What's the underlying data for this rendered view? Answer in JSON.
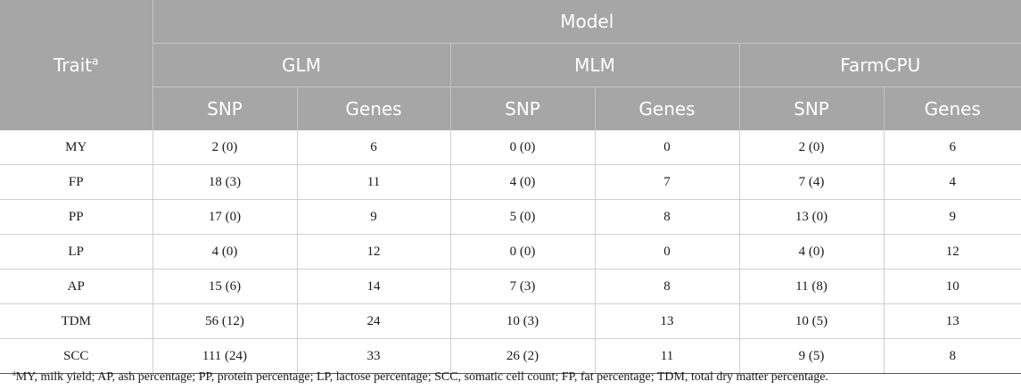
{
  "header": {
    "trait_label": "Trait",
    "trait_sup": "a",
    "model_label": "Model",
    "models": [
      "GLM",
      "MLM",
      "FarmCPU"
    ],
    "subcols": [
      "SNP",
      "Genes",
      "SNP",
      "Genes",
      "SNP",
      "Genes"
    ]
  },
  "rows": [
    {
      "trait": "MY",
      "cells": [
        "2 (0)",
        "6",
        "0 (0)",
        "0",
        "2 (0)",
        "6"
      ]
    },
    {
      "trait": "FP",
      "cells": [
        "18 (3)",
        "11",
        "4 (0)",
        "7",
        "7 (4)",
        "4"
      ]
    },
    {
      "trait": "PP",
      "cells": [
        "17 (0)",
        "9",
        "5 (0)",
        "8",
        "13 (0)",
        "9"
      ]
    },
    {
      "trait": "LP",
      "cells": [
        "4 (0)",
        "12",
        "0 (0)",
        "0",
        "4 (0)",
        "12"
      ]
    },
    {
      "trait": "AP",
      "cells": [
        "15 (6)",
        "14",
        "7 (3)",
        "8",
        "11 (8)",
        "10"
      ]
    },
    {
      "trait": "TDM",
      "cells": [
        "56 (12)",
        "24",
        "10 (3)",
        "13",
        "10 (5)",
        "13"
      ]
    },
    {
      "trait": "SCC",
      "cells": [
        "111 (24)",
        "33",
        "26 (2)",
        "11",
        "9 (5)",
        "8"
      ]
    }
  ],
  "footnote": {
    "sup": "a",
    "text": "MY, milk yield; AP, ash percentage; PP, protein percentage; LP, lactose percentage; SCC, somatic cell count; FP, fat percentage; TDM, total dry matter percentage."
  }
}
